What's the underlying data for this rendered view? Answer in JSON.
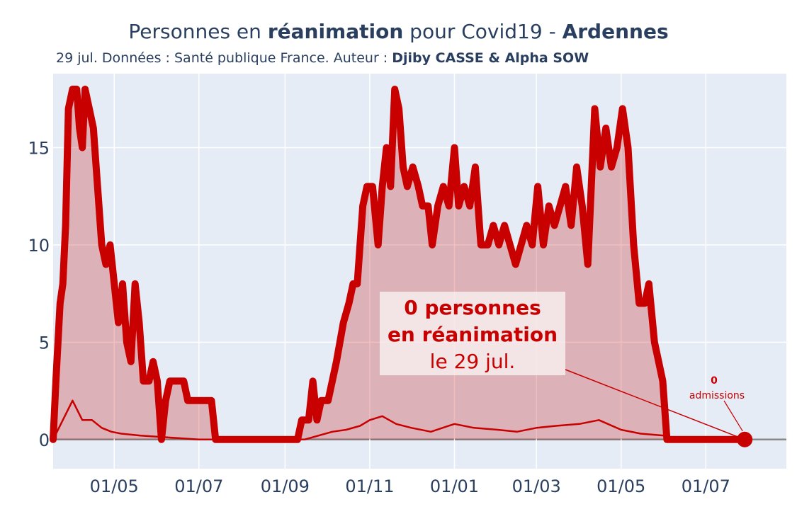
{
  "title": {
    "part1": "Personnes en ",
    "part2": "réanimation",
    "part3": " pour Covid19 - ",
    "part4": "Ardennes"
  },
  "subtitle": {
    "part1": "29 jul. Données : Santé publique France. Auteur : ",
    "part2": "Djiby CASSE & Alpha SOW"
  },
  "annotation": {
    "line1": "0 personnes",
    "line2": "en réanimation",
    "line3": "le 29 jul."
  },
  "admissions_annotation": {
    "value": "0",
    "label": "admissions"
  },
  "colors": {
    "main_line": "#c80000",
    "fill": "rgba(200,0,0,0.25)",
    "plot_bg": "#e5ecf6",
    "grid": "#ffffff",
    "zero_line": "#888888",
    "text": "#2a3f5f"
  },
  "chart_data": {
    "type": "area",
    "title": "Personnes en réanimation pour Covid19 - Ardennes",
    "xlabel": "",
    "ylabel": "",
    "x_range": [
      "2020-03-18",
      "2021-08-28"
    ],
    "ylim": [
      -1.5,
      18.8
    ],
    "y_ticks": [
      0,
      5,
      10,
      15
    ],
    "x_ticks": [
      {
        "date": "2020-05-01",
        "label": "01/05"
      },
      {
        "date": "2020-07-01",
        "label": "01/07"
      },
      {
        "date": "2020-09-01",
        "label": "01/09"
      },
      {
        "date": "2020-11-01",
        "label": "01/11"
      },
      {
        "date": "2021-01-01",
        "label": "01/01"
      },
      {
        "date": "2021-03-01",
        "label": "01/03"
      },
      {
        "date": "2021-05-01",
        "label": "01/05"
      },
      {
        "date": "2021-07-01",
        "label": "01/07"
      }
    ],
    "grid": true,
    "series": [
      {
        "kind": "reanimation",
        "points": [
          [
            "2020-03-18",
            0
          ],
          [
            "2020-03-20",
            3
          ],
          [
            "2020-03-23",
            7
          ],
          [
            "2020-03-25",
            8
          ],
          [
            "2020-03-27",
            11
          ],
          [
            "2020-03-29",
            17
          ],
          [
            "2020-04-01",
            18
          ],
          [
            "2020-04-04",
            18
          ],
          [
            "2020-04-06",
            16
          ],
          [
            "2020-04-08",
            15
          ],
          [
            "2020-04-10",
            18
          ],
          [
            "2020-04-13",
            17
          ],
          [
            "2020-04-16",
            16
          ],
          [
            "2020-04-19",
            13
          ],
          [
            "2020-04-22",
            10
          ],
          [
            "2020-04-25",
            9
          ],
          [
            "2020-04-28",
            10
          ],
          [
            "2020-05-01",
            8
          ],
          [
            "2020-05-04",
            6
          ],
          [
            "2020-05-07",
            8
          ],
          [
            "2020-05-10",
            5
          ],
          [
            "2020-05-13",
            4
          ],
          [
            "2020-05-16",
            8
          ],
          [
            "2020-05-19",
            6
          ],
          [
            "2020-05-22",
            3
          ],
          [
            "2020-05-26",
            3
          ],
          [
            "2020-05-29",
            4
          ],
          [
            "2020-06-01",
            3
          ],
          [
            "2020-06-04",
            0
          ],
          [
            "2020-06-07",
            2
          ],
          [
            "2020-06-10",
            3
          ],
          [
            "2020-06-20",
            3
          ],
          [
            "2020-06-23",
            2
          ],
          [
            "2020-07-10",
            2
          ],
          [
            "2020-07-13",
            0
          ],
          [
            "2020-09-10",
            0
          ],
          [
            "2020-09-13",
            1
          ],
          [
            "2020-09-18",
            1
          ],
          [
            "2020-09-21",
            3
          ],
          [
            "2020-09-24",
            1
          ],
          [
            "2020-09-27",
            2
          ],
          [
            "2020-10-02",
            2
          ],
          [
            "2020-10-05",
            3
          ],
          [
            "2020-10-08",
            4
          ],
          [
            "2020-10-13",
            6
          ],
          [
            "2020-10-17",
            7
          ],
          [
            "2020-10-20",
            8
          ],
          [
            "2020-10-23",
            8
          ],
          [
            "2020-10-27",
            12
          ],
          [
            "2020-10-30",
            13
          ],
          [
            "2020-11-03",
            13
          ],
          [
            "2020-11-07",
            10
          ],
          [
            "2020-11-10",
            13
          ],
          [
            "2020-11-13",
            15
          ],
          [
            "2020-11-16",
            13
          ],
          [
            "2020-11-19",
            18
          ],
          [
            "2020-11-22",
            17
          ],
          [
            "2020-11-25",
            14
          ],
          [
            "2020-11-28",
            13
          ],
          [
            "2020-12-02",
            14
          ],
          [
            "2020-12-06",
            13
          ],
          [
            "2020-12-09",
            12
          ],
          [
            "2020-12-13",
            12
          ],
          [
            "2020-12-16",
            10
          ],
          [
            "2020-12-20",
            12
          ],
          [
            "2020-12-24",
            13
          ],
          [
            "2020-12-28",
            12
          ],
          [
            "2021-01-01",
            15
          ],
          [
            "2021-01-04",
            12
          ],
          [
            "2021-01-08",
            13
          ],
          [
            "2021-01-12",
            12
          ],
          [
            "2021-01-16",
            14
          ],
          [
            "2021-01-20",
            10
          ],
          [
            "2021-01-25",
            10
          ],
          [
            "2021-01-29",
            11
          ],
          [
            "2021-02-02",
            10
          ],
          [
            "2021-02-06",
            11
          ],
          [
            "2021-02-10",
            10
          ],
          [
            "2021-02-14",
            9
          ],
          [
            "2021-02-18",
            10
          ],
          [
            "2021-02-22",
            11
          ],
          [
            "2021-02-26",
            10
          ],
          [
            "2021-03-02",
            13
          ],
          [
            "2021-03-06",
            10
          ],
          [
            "2021-03-10",
            12
          ],
          [
            "2021-03-14",
            11
          ],
          [
            "2021-03-18",
            12
          ],
          [
            "2021-03-22",
            13
          ],
          [
            "2021-03-26",
            11
          ],
          [
            "2021-03-30",
            14
          ],
          [
            "2021-04-03",
            12
          ],
          [
            "2021-04-07",
            9
          ],
          [
            "2021-04-12",
            17
          ],
          [
            "2021-04-16",
            14
          ],
          [
            "2021-04-20",
            16
          ],
          [
            "2021-04-24",
            14
          ],
          [
            "2021-04-28",
            15
          ],
          [
            "2021-05-02",
            17
          ],
          [
            "2021-05-06",
            15
          ],
          [
            "2021-05-10",
            10
          ],
          [
            "2021-05-14",
            7
          ],
          [
            "2021-05-18",
            7
          ],
          [
            "2021-05-21",
            8
          ],
          [
            "2021-05-25",
            5
          ],
          [
            "2021-05-28",
            4
          ],
          [
            "2021-05-31",
            3
          ],
          [
            "2021-06-03",
            0
          ],
          [
            "2021-07-29",
            0
          ]
        ]
      },
      {
        "kind": "admissions",
        "points": [
          [
            "2020-03-18",
            0
          ],
          [
            "2020-03-25",
            1
          ],
          [
            "2020-04-01",
            2
          ],
          [
            "2020-04-08",
            1
          ],
          [
            "2020-04-15",
            1
          ],
          [
            "2020-04-22",
            0.6
          ],
          [
            "2020-04-29",
            0.4
          ],
          [
            "2020-05-06",
            0.3
          ],
          [
            "2020-05-20",
            0.2
          ],
          [
            "2020-06-10",
            0.1
          ],
          [
            "2020-07-01",
            0
          ],
          [
            "2020-09-15",
            0
          ],
          [
            "2020-09-25",
            0.2
          ],
          [
            "2020-10-05",
            0.4
          ],
          [
            "2020-10-15",
            0.5
          ],
          [
            "2020-10-25",
            0.7
          ],
          [
            "2020-11-01",
            1.0
          ],
          [
            "2020-11-10",
            1.2
          ],
          [
            "2020-11-20",
            0.8
          ],
          [
            "2020-12-01",
            0.6
          ],
          [
            "2020-12-15",
            0.4
          ],
          [
            "2021-01-01",
            0.8
          ],
          [
            "2021-01-15",
            0.6
          ],
          [
            "2021-02-01",
            0.5
          ],
          [
            "2021-02-15",
            0.4
          ],
          [
            "2021-03-01",
            0.6
          ],
          [
            "2021-03-15",
            0.7
          ],
          [
            "2021-04-01",
            0.8
          ],
          [
            "2021-04-15",
            1.0
          ],
          [
            "2021-05-01",
            0.5
          ],
          [
            "2021-05-15",
            0.3
          ],
          [
            "2021-06-01",
            0.2
          ],
          [
            "2021-06-15",
            0
          ],
          [
            "2021-07-29",
            0
          ]
        ]
      }
    ]
  }
}
